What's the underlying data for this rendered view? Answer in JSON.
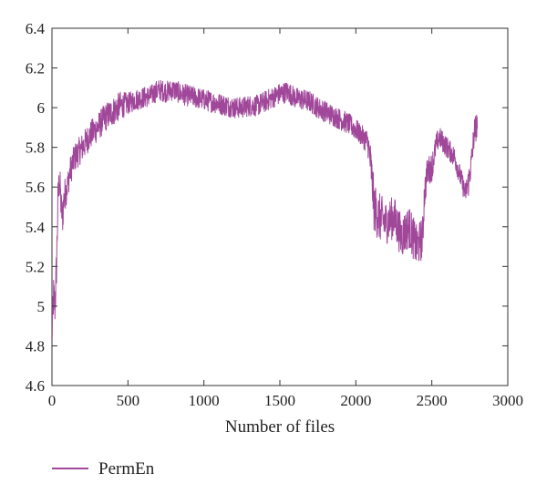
{
  "chart_data": {
    "type": "line",
    "title": "",
    "xlabel": "Number of files",
    "ylabel": "",
    "xlim": [
      0,
      3000
    ],
    "ylim": [
      4.6,
      6.4
    ],
    "x_ticks": [
      0,
      500,
      1000,
      1500,
      2000,
      2500,
      3000
    ],
    "x_tick_labels": [
      "0",
      "500",
      "1000",
      "1500",
      "2000",
      "2500",
      "3000"
    ],
    "y_ticks": [
      4.6,
      4.8,
      5,
      5.2,
      5.4,
      5.6,
      5.8,
      6,
      6.2,
      6.4
    ],
    "y_tick_labels": [
      "4.6",
      "4.8",
      "5",
      "5.2",
      "5.4",
      "5.6",
      "5.8",
      "6",
      "6.2",
      "6.4"
    ],
    "grid": false,
    "legend_position": "bottom-left",
    "series": [
      {
        "name": "PermEn",
        "color": "#a0479a",
        "x": [
          0,
          10,
          20,
          30,
          40,
          50,
          60,
          70,
          80,
          100,
          120,
          150,
          200,
          250,
          300,
          350,
          400,
          450,
          500,
          550,
          600,
          650,
          700,
          750,
          800,
          850,
          900,
          950,
          1000,
          1050,
          1100,
          1150,
          1200,
          1250,
          1300,
          1350,
          1400,
          1450,
          1500,
          1550,
          1600,
          1650,
          1700,
          1750,
          1800,
          1850,
          1900,
          1950,
          2000,
          2050,
          2080,
          2100,
          2120,
          2150,
          2200,
          2250,
          2300,
          2350,
          2400,
          2420,
          2440,
          2450,
          2470,
          2500,
          2530,
          2550,
          2600,
          2650,
          2700,
          2720,
          2740,
          2760,
          2780,
          2800
        ],
        "values": [
          4.85,
          5.05,
          5.0,
          5.2,
          5.55,
          5.65,
          5.5,
          5.45,
          5.55,
          5.6,
          5.68,
          5.75,
          5.8,
          5.86,
          5.9,
          5.95,
          5.98,
          6.01,
          6.02,
          6.04,
          6.05,
          6.06,
          6.09,
          6.08,
          6.09,
          6.07,
          6.06,
          6.05,
          6.04,
          6.03,
          6.02,
          6.01,
          6.0,
          6.0,
          6.01,
          6.01,
          6.03,
          6.05,
          6.07,
          6.08,
          6.05,
          6.04,
          6.03,
          6.0,
          5.98,
          5.96,
          5.94,
          5.92,
          5.89,
          5.85,
          5.82,
          5.7,
          5.5,
          5.45,
          5.42,
          5.45,
          5.35,
          5.4,
          5.3,
          5.32,
          5.35,
          5.55,
          5.68,
          5.7,
          5.82,
          5.85,
          5.8,
          5.75,
          5.62,
          5.57,
          5.62,
          5.72,
          5.88,
          5.92
        ],
        "noise": [
          0.12,
          0.12,
          0.12,
          0.12,
          0.1,
          0.1,
          0.1,
          0.1,
          0.1,
          0.08,
          0.08,
          0.08,
          0.08,
          0.08,
          0.08,
          0.08,
          0.08,
          0.08,
          0.06,
          0.06,
          0.06,
          0.06,
          0.06,
          0.06,
          0.06,
          0.06,
          0.06,
          0.06,
          0.06,
          0.06,
          0.06,
          0.06,
          0.06,
          0.06,
          0.06,
          0.06,
          0.06,
          0.06,
          0.06,
          0.06,
          0.06,
          0.06,
          0.06,
          0.06,
          0.06,
          0.06,
          0.06,
          0.06,
          0.06,
          0.06,
          0.08,
          0.12,
          0.14,
          0.14,
          0.12,
          0.12,
          0.12,
          0.12,
          0.12,
          0.12,
          0.12,
          0.1,
          0.08,
          0.08,
          0.06,
          0.06,
          0.06,
          0.06,
          0.06,
          0.06,
          0.08,
          0.08,
          0.08,
          0.08
        ]
      }
    ]
  }
}
